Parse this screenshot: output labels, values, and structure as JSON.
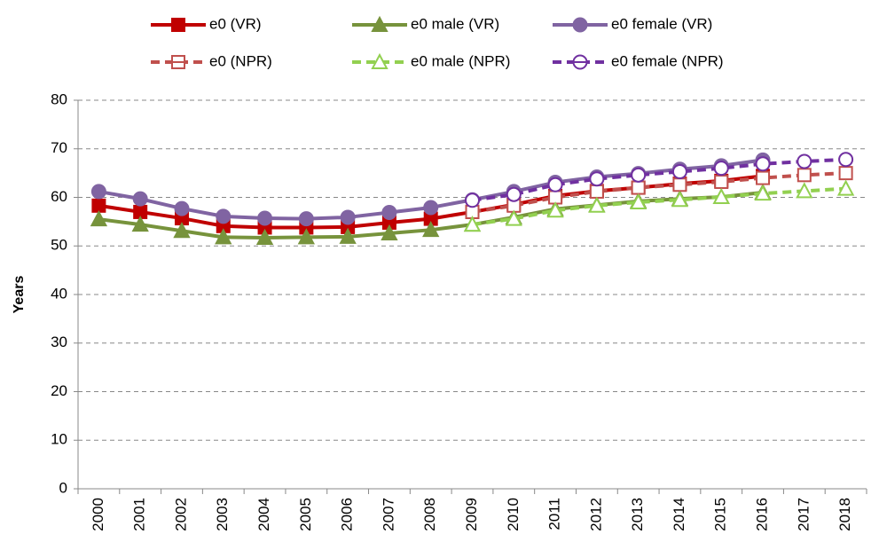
{
  "chart_data": {
    "type": "line",
    "y_label": "Years",
    "categories": [
      "2000",
      "2001",
      "2002",
      "2003",
      "2004",
      "2005",
      "2006",
      "2007",
      "2008",
      "2009",
      "2010",
      "2011",
      "2012",
      "2013",
      "2014",
      "2015",
      "2016",
      "2017",
      "2018"
    ],
    "ylim": [
      0,
      80
    ],
    "yticks": [
      0,
      10,
      20,
      30,
      40,
      50,
      60,
      70,
      80
    ],
    "grid": true,
    "series": [
      {
        "name": "e0 (VR)",
        "color": "#c00000",
        "marker": "square",
        "filled": true,
        "dashed": false,
        "values": [
          58.3,
          57.0,
          55.7,
          54.1,
          53.8,
          53.8,
          53.9,
          54.8,
          55.6,
          57.0,
          58.5,
          60.3,
          61.3,
          62.0,
          62.8,
          63.4,
          64.4,
          null,
          null
        ]
      },
      {
        "name": "e0 male (VR)",
        "color": "#77933c",
        "marker": "triangle",
        "filled": true,
        "dashed": false,
        "values": [
          55.5,
          54.4,
          53.1,
          51.8,
          51.7,
          51.8,
          51.9,
          52.6,
          53.3,
          54.4,
          55.9,
          57.6,
          58.4,
          59.2,
          59.7,
          60.1,
          61.0,
          null,
          null
        ]
      },
      {
        "name": "e0 female (VR)",
        "color": "#8064a2",
        "marker": "circle",
        "filled": true,
        "dashed": false,
        "values": [
          61.2,
          59.7,
          57.7,
          56.1,
          55.7,
          55.6,
          55.9,
          56.9,
          57.9,
          59.5,
          61.2,
          63.1,
          64.2,
          64.9,
          65.8,
          66.5,
          67.7,
          null,
          null
        ]
      },
      {
        "name": "e0 (NPR)",
        "color": "#c0504d",
        "marker": "square",
        "filled": false,
        "dashed": true,
        "values": [
          null,
          null,
          null,
          null,
          null,
          null,
          null,
          null,
          null,
          57.0,
          58.3,
          60.0,
          61.2,
          62.0,
          62.6,
          63.2,
          64.0,
          64.6,
          65.0
        ]
      },
      {
        "name": "e0 male (NPR)",
        "color": "#92d050",
        "marker": "triangle",
        "filled": false,
        "dashed": true,
        "values": [
          null,
          null,
          null,
          null,
          null,
          null,
          null,
          null,
          null,
          54.4,
          55.6,
          57.3,
          58.3,
          59.0,
          59.5,
          60.1,
          60.8,
          61.3,
          61.8
        ]
      },
      {
        "name": "e0 female (NPR)",
        "color": "#7030a0",
        "marker": "circle",
        "filled": false,
        "dashed": true,
        "values": [
          null,
          null,
          null,
          null,
          null,
          null,
          null,
          null,
          null,
          59.4,
          60.6,
          62.6,
          63.8,
          64.6,
          65.3,
          66.0,
          66.9,
          67.4,
          67.8
        ]
      }
    ]
  }
}
